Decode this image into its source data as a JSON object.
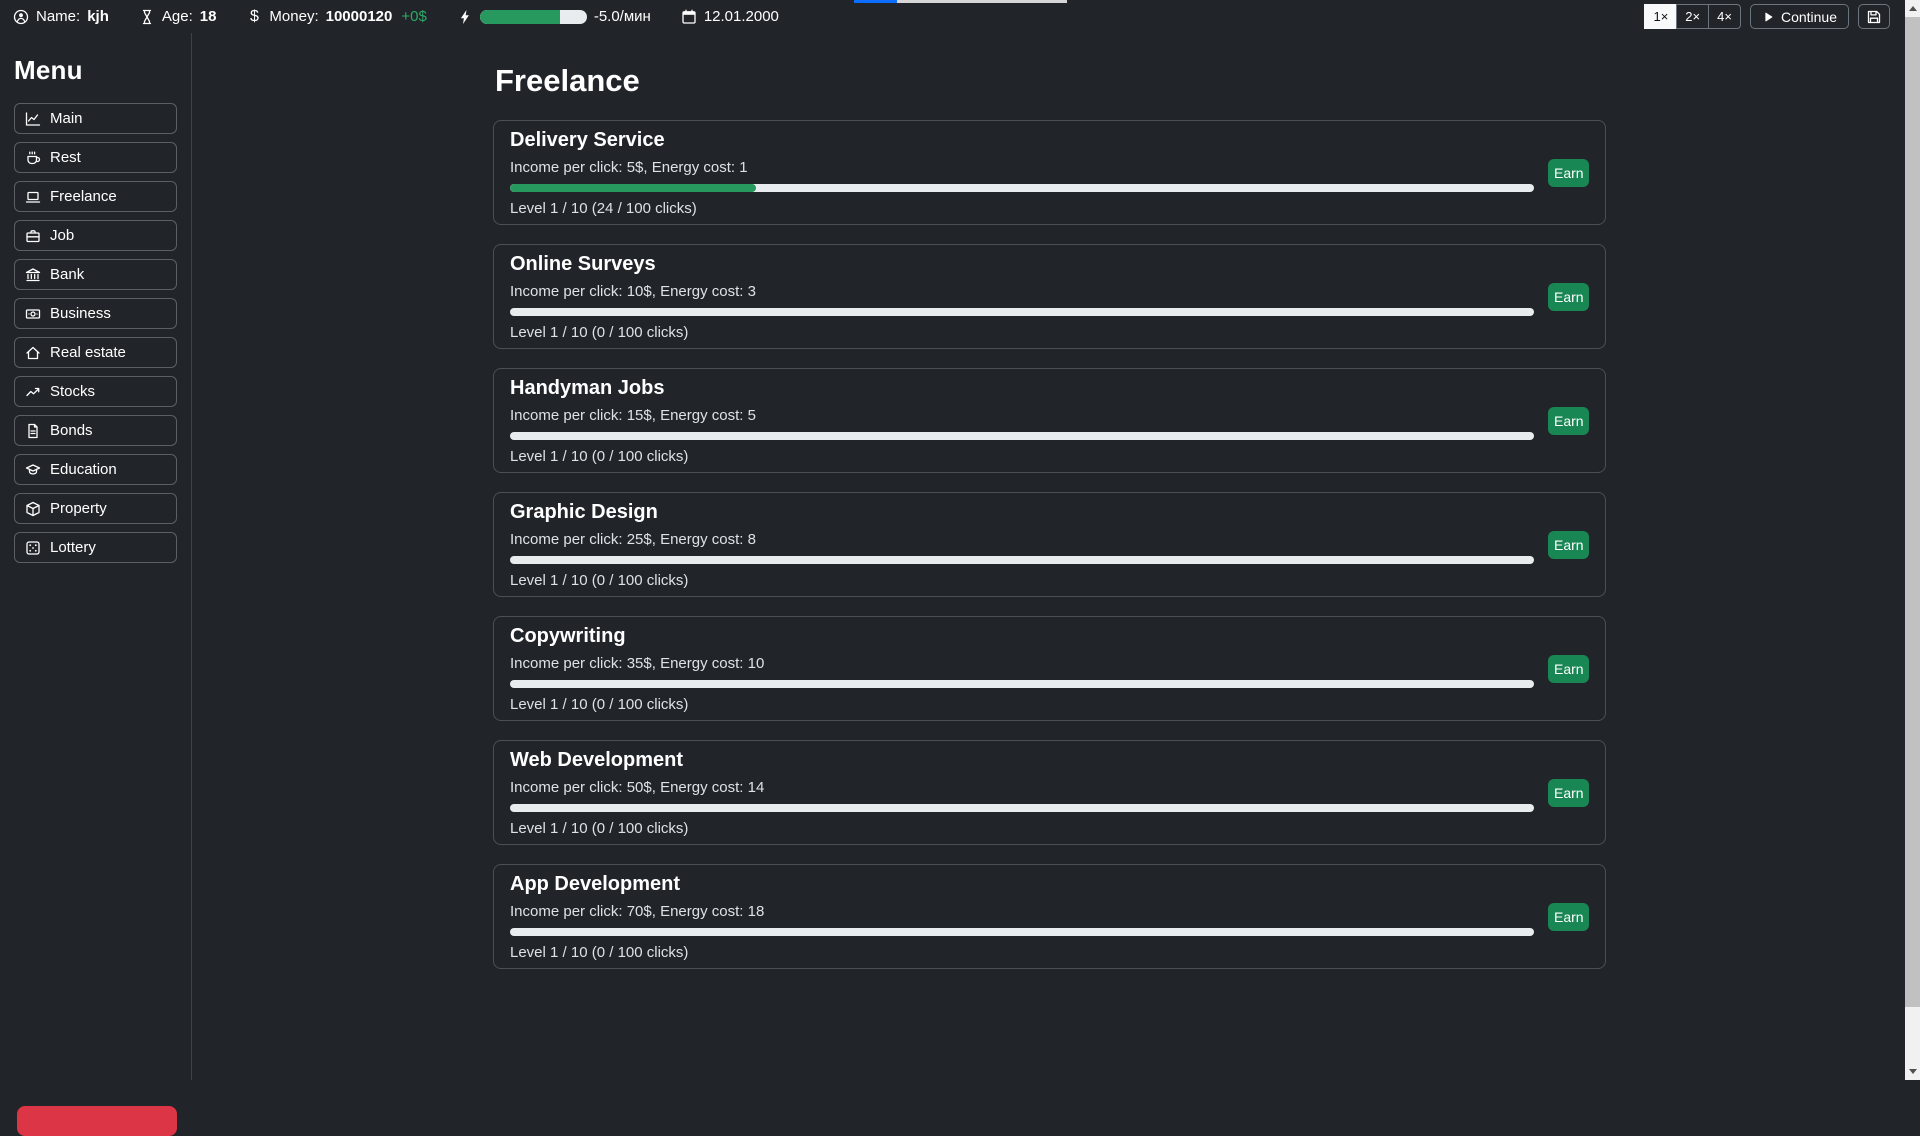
{
  "colors": {
    "bg": "#212529",
    "card_border": "#495057",
    "control_border": "#6c757d",
    "success_green": "#198754",
    "bar_green": "#27995e",
    "bar_track": "#e9ecef",
    "muted_text": "#dee2e6",
    "danger_red": "#dc3545",
    "day_blue": "#0d6efd",
    "delta_green": "#2dab67"
  },
  "topbar": {
    "name_label": "Name:",
    "name_value": "kjh",
    "age_label": "Age:",
    "age_value": "18",
    "currency_symbol": "$",
    "money_label": "Money:",
    "money_value": "10000120",
    "money_delta": "+0$",
    "energy_rate": "-5.0/мин",
    "energy_percent": 75,
    "day_progress_percent": 20,
    "date": "12.01.2000",
    "speed_buttons": [
      {
        "label": "1×",
        "active": true
      },
      {
        "label": "2×",
        "active": false
      },
      {
        "label": "4×",
        "active": false
      }
    ],
    "continue_label": "Continue",
    "icons": [
      "person-icon",
      "hourglass-icon",
      "dollar-icon",
      "lightning-icon",
      "calendar-icon",
      "play-icon",
      "save-icon"
    ]
  },
  "sidebar": {
    "title": "Menu",
    "items": [
      {
        "label": "Main",
        "icon": "chart-line-icon"
      },
      {
        "label": "Rest",
        "icon": "coffee-cup-icon"
      },
      {
        "label": "Freelance",
        "icon": "laptop-icon"
      },
      {
        "label": "Job",
        "icon": "briefcase-icon"
      },
      {
        "label": "Bank",
        "icon": "bank-icon"
      },
      {
        "label": "Business",
        "icon": "banknote-icon"
      },
      {
        "label": "Real estate",
        "icon": "house-icon"
      },
      {
        "label": "Stocks",
        "icon": "trend-up-icon"
      },
      {
        "label": "Bonds",
        "icon": "file-icon"
      },
      {
        "label": "Education",
        "icon": "graduation-cap-icon"
      },
      {
        "label": "Property",
        "icon": "box-icon"
      },
      {
        "label": "Lottery",
        "icon": "dice-icon"
      }
    ]
  },
  "main": {
    "title": "Freelance",
    "earn_label": "Earn",
    "jobs": [
      {
        "name": "Delivery Service",
        "income_line": "Income per click: 5$, Energy cost: 1",
        "progress_percent": 24,
        "level_line": "Level 1 / 10 (24 / 100 clicks)"
      },
      {
        "name": "Online Surveys",
        "income_line": "Income per click: 10$, Energy cost: 3",
        "progress_percent": 0,
        "level_line": "Level 1 / 10 (0 / 100 clicks)"
      },
      {
        "name": "Handyman Jobs",
        "income_line": "Income per click: 15$, Energy cost: 5",
        "progress_percent": 0,
        "level_line": "Level 1 / 10 (0 / 100 clicks)"
      },
      {
        "name": "Graphic Design",
        "income_line": "Income per click: 25$, Energy cost: 8",
        "progress_percent": 0,
        "level_line": "Level 1 / 10 (0 / 100 clicks)"
      },
      {
        "name": "Copywriting",
        "income_line": "Income per click: 35$, Energy cost: 10",
        "progress_percent": 0,
        "level_line": "Level 1 / 10 (0 / 100 clicks)"
      },
      {
        "name": "Web Development",
        "income_line": "Income per click: 50$, Energy cost: 14",
        "progress_percent": 0,
        "level_line": "Level 1 / 10 (0 / 100 clicks)"
      },
      {
        "name": "App Development",
        "income_line": "Income per click: 70$, Energy cost: 18",
        "progress_percent": 0,
        "level_line": "Level 1 / 10 (0 / 100 clicks)"
      }
    ]
  }
}
